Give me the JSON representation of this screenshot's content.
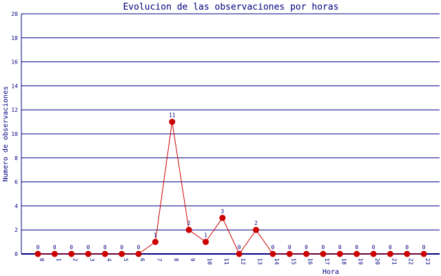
{
  "chart_data": {
    "type": "line",
    "title": "Evolucion de las observaciones por horas",
    "xlabel": "Hora",
    "ylabel": "Numero de observaciones",
    "categories": [
      "0",
      "1",
      "2",
      "3",
      "4",
      "5",
      "6",
      "7",
      "8",
      "9",
      "10",
      "11",
      "12",
      "13",
      "14",
      "15",
      "16",
      "17",
      "18",
      "19",
      "20",
      "21",
      "22",
      "23"
    ],
    "values": [
      0,
      0,
      0,
      0,
      0,
      0,
      0,
      1,
      11,
      2,
      1,
      3,
      0,
      2,
      0,
      0,
      0,
      0,
      0,
      0,
      0,
      0,
      0,
      0
    ],
    "ylim": [
      0,
      20
    ],
    "yticks": [
      0,
      2,
      4,
      6,
      8,
      10,
      12,
      14,
      16,
      18,
      20
    ],
    "grid": true,
    "colors": {
      "line": "#cc0000",
      "marker": "#cc0000",
      "axis": "#000080",
      "text": "#000080"
    }
  }
}
